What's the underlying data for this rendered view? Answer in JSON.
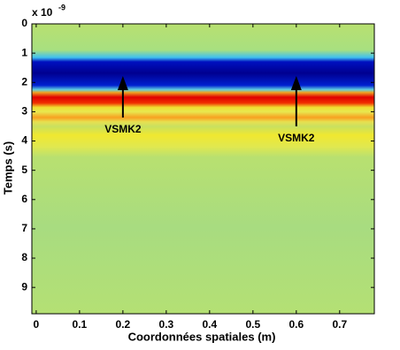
{
  "chart_data": {
    "type": "heatmap",
    "xlabel": "Coordonnées spatiales (m)",
    "ylabel": "Temps (s)",
    "y_multiplier": {
      "base": "x 10",
      "exponent": "-9"
    },
    "xlim": [
      -0.01,
      0.78
    ],
    "xticks": [
      0,
      0.1,
      0.2,
      0.3,
      0.4,
      0.5,
      0.6,
      0.7
    ],
    "ylim": [
      0,
      9.9
    ],
    "yticks": [
      0,
      1,
      2,
      3,
      4,
      5,
      6,
      7,
      8,
      9
    ],
    "y_inverted": true,
    "annotations": [
      {
        "text": "VSMK2",
        "x": 0.2,
        "y_start": 3.2,
        "y_end": 1.9
      },
      {
        "text": "VSMK2",
        "x": 0.6,
        "y_start": 3.5,
        "y_end": 1.9
      }
    ]
  }
}
